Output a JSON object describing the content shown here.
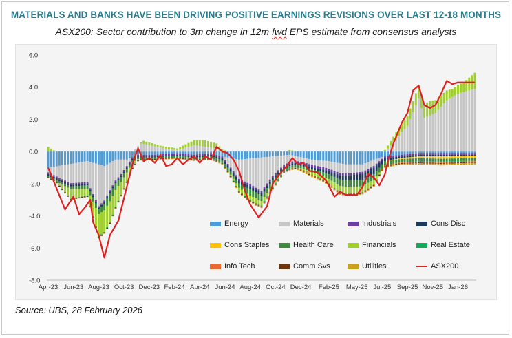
{
  "header": {
    "title": "MATERIALS AND BANKS HAVE BEEN DRIVING POSITIVE EARNINGS REVISIONS OVER LAST 12-18 MONTHS",
    "subtitle_pre": "ASX200: Sector contribution to 3m change in 12m ",
    "subtitle_fwd": "fwd",
    "subtitle_post": " EPS estimate from consensus analysts"
  },
  "source": "Source: UBS, 28 February 2026",
  "colors": {
    "Energy": "#4e9bd6",
    "Materials": "#c6c6c6",
    "Industrials": "#6a3fa0",
    "Cons Disc": "#1f3b5c",
    "Cons Staples": "#ffc000",
    "Health Care": "#3d8a3a",
    "Financials": "#9fd02a",
    "Real Estate": "#16a85a",
    "Info Tech": "#e86a2c",
    "Comm Svs": "#6b3510",
    "Utilities": "#c9a21a",
    "ASX200": "#e02020"
  },
  "legend": [
    "Energy",
    "Materials",
    "Industrials",
    "Cons Disc",
    "Cons Staples",
    "Health Care",
    "Financials",
    "Real Estate",
    "Info Tech",
    "Comm Svs",
    "Utilities",
    "ASX200"
  ],
  "chart_data": {
    "type": "bar",
    "stacked": true,
    "title": "ASX200: Sector contribution to 3m change in 12m fwd EPS estimate from consensus analysts",
    "xlabel": "",
    "ylabel": "",
    "ylim": [
      -8.0,
      6.0
    ],
    "yticks": [
      "6.0",
      "4.0",
      "2.0",
      "0.0",
      "-2.0",
      "-4.0",
      "-6.0",
      "-8.0"
    ],
    "ytick_values": [
      6,
      4,
      2,
      0,
      -2,
      -4,
      -6,
      -8
    ],
    "x_tick_labels": [
      "Apr-23",
      "Jun-23",
      "Aug-23",
      "Oct-23",
      "Dec-23",
      "Feb-24",
      "Apr-24",
      "Jun-24",
      "Aug-24",
      "Oct-24",
      "Dec-24",
      "Feb-25",
      "May-25",
      "Jul-25",
      "Sep-25",
      "Nov-25",
      "Jan-26"
    ],
    "x_tick_index": [
      0,
      9,
      18,
      27,
      36,
      45,
      54,
      63,
      72,
      81,
      90,
      100,
      110,
      119,
      128,
      137,
      146
    ],
    "n_periods": 153,
    "anchors": {
      "ASX200": [
        [
          0,
          -1.0
        ],
        [
          3,
          -2.3
        ],
        [
          6,
          -3.6
        ],
        [
          9,
          -2.8
        ],
        [
          11,
          -3.9
        ],
        [
          13,
          -3.5
        ],
        [
          15,
          -3.0
        ],
        [
          16,
          -4.4
        ],
        [
          18,
          -5.2
        ],
        [
          20,
          -6.6
        ],
        [
          22,
          -5.2
        ],
        [
          25,
          -4.3
        ],
        [
          28,
          -2.2
        ],
        [
          30,
          -0.8
        ],
        [
          32,
          0.2
        ],
        [
          34,
          -0.6
        ],
        [
          36,
          -0.4
        ],
        [
          38,
          -0.7
        ],
        [
          40,
          -0.2
        ],
        [
          42,
          -0.9
        ],
        [
          44,
          -0.8
        ],
        [
          46,
          -0.4
        ],
        [
          48,
          -0.8
        ],
        [
          50,
          -0.5
        ],
        [
          52,
          -0.3
        ],
        [
          54,
          -0.7
        ],
        [
          56,
          -0.3
        ],
        [
          58,
          -0.5
        ],
        [
          60,
          0.3
        ],
        [
          62,
          0.0
        ],
        [
          64,
          -0.1
        ],
        [
          66,
          -0.5
        ],
        [
          68,
          -1.2
        ],
        [
          70,
          -2.4
        ],
        [
          72,
          -3.3
        ],
        [
          75,
          -4.1
        ],
        [
          78,
          -3.4
        ],
        [
          80,
          -2.0
        ],
        [
          82,
          -1.5
        ],
        [
          85,
          -0.9
        ],
        [
          87,
          -0.4
        ],
        [
          89,
          -0.8
        ],
        [
          91,
          -0.7
        ],
        [
          93,
          -1.2
        ],
        [
          96,
          -1.3
        ],
        [
          99,
          -1.8
        ],
        [
          102,
          -2.8
        ],
        [
          104,
          -2.5
        ],
        [
          106,
          -2.7
        ],
        [
          110,
          -2.7
        ],
        [
          112,
          -2.2
        ],
        [
          114,
          -1.4
        ],
        [
          116,
          -1.6
        ],
        [
          118,
          -2.1
        ],
        [
          120,
          -1.4
        ],
        [
          121,
          -0.6
        ],
        [
          123,
          0.5
        ],
        [
          126,
          1.8
        ],
        [
          128,
          2.4
        ],
        [
          130,
          3.8
        ],
        [
          132,
          4.1
        ],
        [
          134,
          2.9
        ],
        [
          136,
          2.7
        ],
        [
          138,
          2.9
        ],
        [
          140,
          3.6
        ],
        [
          142,
          4.4
        ],
        [
          144,
          4.2
        ],
        [
          146,
          4.3
        ],
        [
          148,
          4.3
        ],
        [
          150,
          4.3
        ],
        [
          152,
          4.3
        ]
      ],
      "Energy": [
        [
          0,
          -1.0
        ],
        [
          14,
          -0.6
        ],
        [
          20,
          -0.9
        ],
        [
          24,
          -0.5
        ],
        [
          28,
          -0.5
        ],
        [
          32,
          -0.2
        ],
        [
          38,
          -0.2
        ],
        [
          46,
          -0.1
        ],
        [
          52,
          -0.2
        ],
        [
          58,
          -0.1
        ],
        [
          62,
          -0.3
        ],
        [
          68,
          -0.5
        ],
        [
          74,
          -0.4
        ],
        [
          80,
          -0.3
        ],
        [
          86,
          -0.2
        ],
        [
          94,
          -0.5
        ],
        [
          100,
          -0.6
        ],
        [
          106,
          -0.8
        ],
        [
          112,
          -0.8
        ],
        [
          116,
          -0.5
        ],
        [
          120,
          -0.3
        ],
        [
          126,
          -0.2
        ],
        [
          132,
          -0.1
        ],
        [
          140,
          -0.1
        ],
        [
          152,
          -0.1
        ]
      ],
      "Materials": [
        [
          0,
          -0.3
        ],
        [
          8,
          -1.2
        ],
        [
          14,
          -1.3
        ],
        [
          18,
          -2.6
        ],
        [
          22,
          -1.7
        ],
        [
          26,
          -0.9
        ],
        [
          28,
          -0.4
        ],
        [
          30,
          0.0
        ],
        [
          33,
          0.5
        ],
        [
          36,
          0.4
        ],
        [
          42,
          0.2
        ],
        [
          46,
          0.1
        ],
        [
          52,
          0.4
        ],
        [
          56,
          0.3
        ],
        [
          60,
          0.2
        ],
        [
          62,
          0.0
        ],
        [
          64,
          -0.4
        ],
        [
          68,
          -1.2
        ],
        [
          72,
          -1.6
        ],
        [
          76,
          -2.1
        ],
        [
          80,
          -1.2
        ],
        [
          84,
          -0.6
        ],
        [
          88,
          -0.3
        ],
        [
          92,
          -0.3
        ],
        [
          98,
          -0.4
        ],
        [
          104,
          -0.6
        ],
        [
          110,
          -0.5
        ],
        [
          116,
          -0.4
        ],
        [
          120,
          0.0
        ],
        [
          124,
          0.8
        ],
        [
          128,
          1.6
        ],
        [
          132,
          3.3
        ],
        [
          134,
          2.1
        ],
        [
          138,
          2.4
        ],
        [
          142,
          3.2
        ],
        [
          146,
          3.6
        ],
        [
          152,
          3.9
        ]
      ],
      "Industrials": [
        [
          0,
          -0.1
        ],
        [
          60,
          -0.1
        ],
        [
          100,
          -0.15
        ],
        [
          120,
          -0.1
        ],
        [
          152,
          -0.1
        ]
      ],
      "Cons Disc": [
        [
          0,
          -0.1
        ],
        [
          20,
          -0.1
        ],
        [
          40,
          -0.05
        ],
        [
          60,
          -0.1
        ],
        [
          70,
          -0.2
        ],
        [
          90,
          -0.1
        ],
        [
          100,
          -0.2
        ],
        [
          110,
          -0.35
        ],
        [
          116,
          -0.4
        ],
        [
          120,
          -0.2
        ],
        [
          126,
          -0.1
        ],
        [
          140,
          -0.1
        ],
        [
          152,
          -0.05
        ]
      ],
      "Cons Staples": [
        [
          0,
          0.0
        ],
        [
          120,
          0.0
        ],
        [
          130,
          -0.1
        ],
        [
          140,
          -0.15
        ],
        [
          152,
          -0.15
        ]
      ],
      "Health Care": [
        [
          0,
          -0.1
        ],
        [
          12,
          -0.2
        ],
        [
          18,
          -0.3
        ],
        [
          22,
          -0.5
        ],
        [
          26,
          -0.3
        ],
        [
          32,
          -0.1
        ],
        [
          42,
          -0.1
        ],
        [
          56,
          -0.1
        ],
        [
          66,
          -0.2
        ],
        [
          72,
          -0.4
        ],
        [
          78,
          -0.3
        ],
        [
          84,
          -0.1
        ],
        [
          96,
          -0.2
        ],
        [
          104,
          -0.4
        ],
        [
          112,
          -0.4
        ],
        [
          118,
          -0.3
        ],
        [
          124,
          -0.2
        ],
        [
          134,
          -0.2
        ],
        [
          152,
          -0.15
        ]
      ],
      "Financials": [
        [
          0,
          0.3
        ],
        [
          8,
          -0.6
        ],
        [
          14,
          -0.4
        ],
        [
          18,
          -1.4
        ],
        [
          22,
          -1.3
        ],
        [
          26,
          -0.8
        ],
        [
          30,
          -0.3
        ],
        [
          34,
          0.2
        ],
        [
          40,
          0.1
        ],
        [
          46,
          0.1
        ],
        [
          52,
          0.3
        ],
        [
          56,
          0.4
        ],
        [
          60,
          0.3
        ],
        [
          64,
          0.0
        ],
        [
          68,
          -0.2
        ],
        [
          74,
          -0.3
        ],
        [
          80,
          -0.2
        ],
        [
          86,
          0.1
        ],
        [
          92,
          -0.1
        ],
        [
          98,
          -0.2
        ],
        [
          104,
          -0.4
        ],
        [
          110,
          -0.4
        ],
        [
          116,
          -0.3
        ],
        [
          120,
          0.1
        ],
        [
          124,
          0.4
        ],
        [
          128,
          0.6
        ],
        [
          132,
          0.8
        ],
        [
          136,
          0.9
        ],
        [
          140,
          0.7
        ],
        [
          144,
          0.5
        ],
        [
          148,
          0.6
        ],
        [
          152,
          1.0
        ]
      ],
      "Real Estate": [
        [
          0,
          0.0
        ],
        [
          20,
          -0.05
        ],
        [
          40,
          0.0
        ],
        [
          80,
          -0.05
        ],
        [
          120,
          0.0
        ],
        [
          152,
          -0.05
        ]
      ],
      "Info Tech": [
        [
          0,
          0.0
        ],
        [
          60,
          0.0
        ],
        [
          100,
          -0.03
        ],
        [
          130,
          -0.05
        ],
        [
          152,
          -0.05
        ]
      ],
      "Comm Svs": [
        [
          0,
          -0.05
        ],
        [
          60,
          -0.05
        ],
        [
          120,
          -0.05
        ],
        [
          152,
          -0.05
        ]
      ],
      "Utilities": [
        [
          0,
          0.0
        ],
        [
          60,
          -0.05
        ],
        [
          120,
          -0.05
        ],
        [
          140,
          -0.1
        ],
        [
          152,
          -0.1
        ]
      ]
    }
  }
}
